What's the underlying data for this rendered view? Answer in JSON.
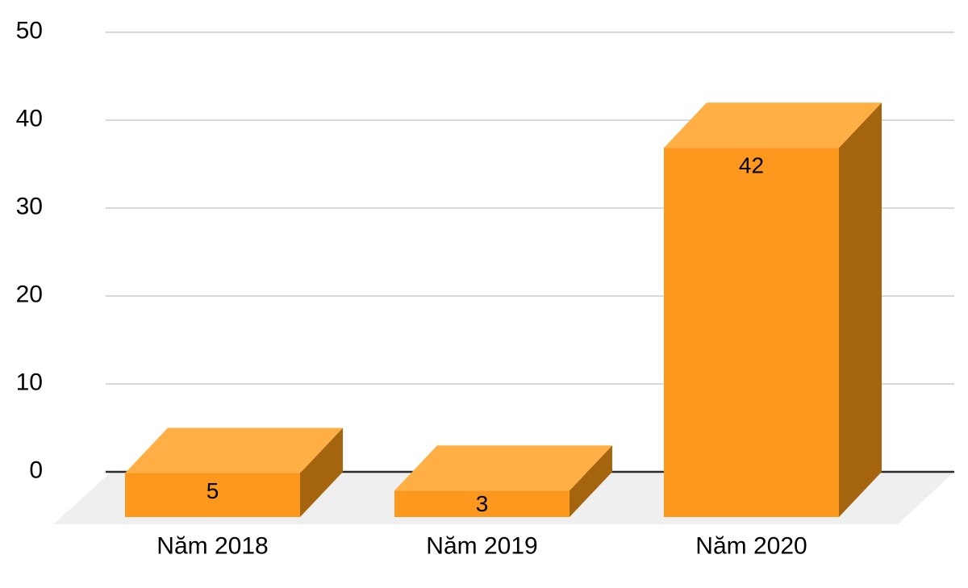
{
  "chart_data": {
    "type": "bar",
    "style": "3d-column",
    "title": "",
    "xlabel": "",
    "ylabel": "",
    "categories": [
      "Năm 2018",
      "Năm 2019",
      "Năm 2020"
    ],
    "series": [
      {
        "name": "",
        "values": [
          5,
          3,
          42
        ]
      }
    ],
    "data_labels": [
      "5",
      "3",
      "42"
    ],
    "y_ticks": [
      0,
      10,
      20,
      30,
      40,
      50
    ],
    "ylim": [
      0,
      50
    ],
    "grid": "horizontal",
    "legend_position": "none",
    "colors": {
      "bar_front": "#FD981F",
      "bar_top": "#FFAF44",
      "bar_side": "#A5650E",
      "floor": "#EFEFEF",
      "gridline": "#D9D9D9",
      "baseline": "#2B2B2B",
      "text": "#000000",
      "background": "#FFFFFF"
    }
  }
}
